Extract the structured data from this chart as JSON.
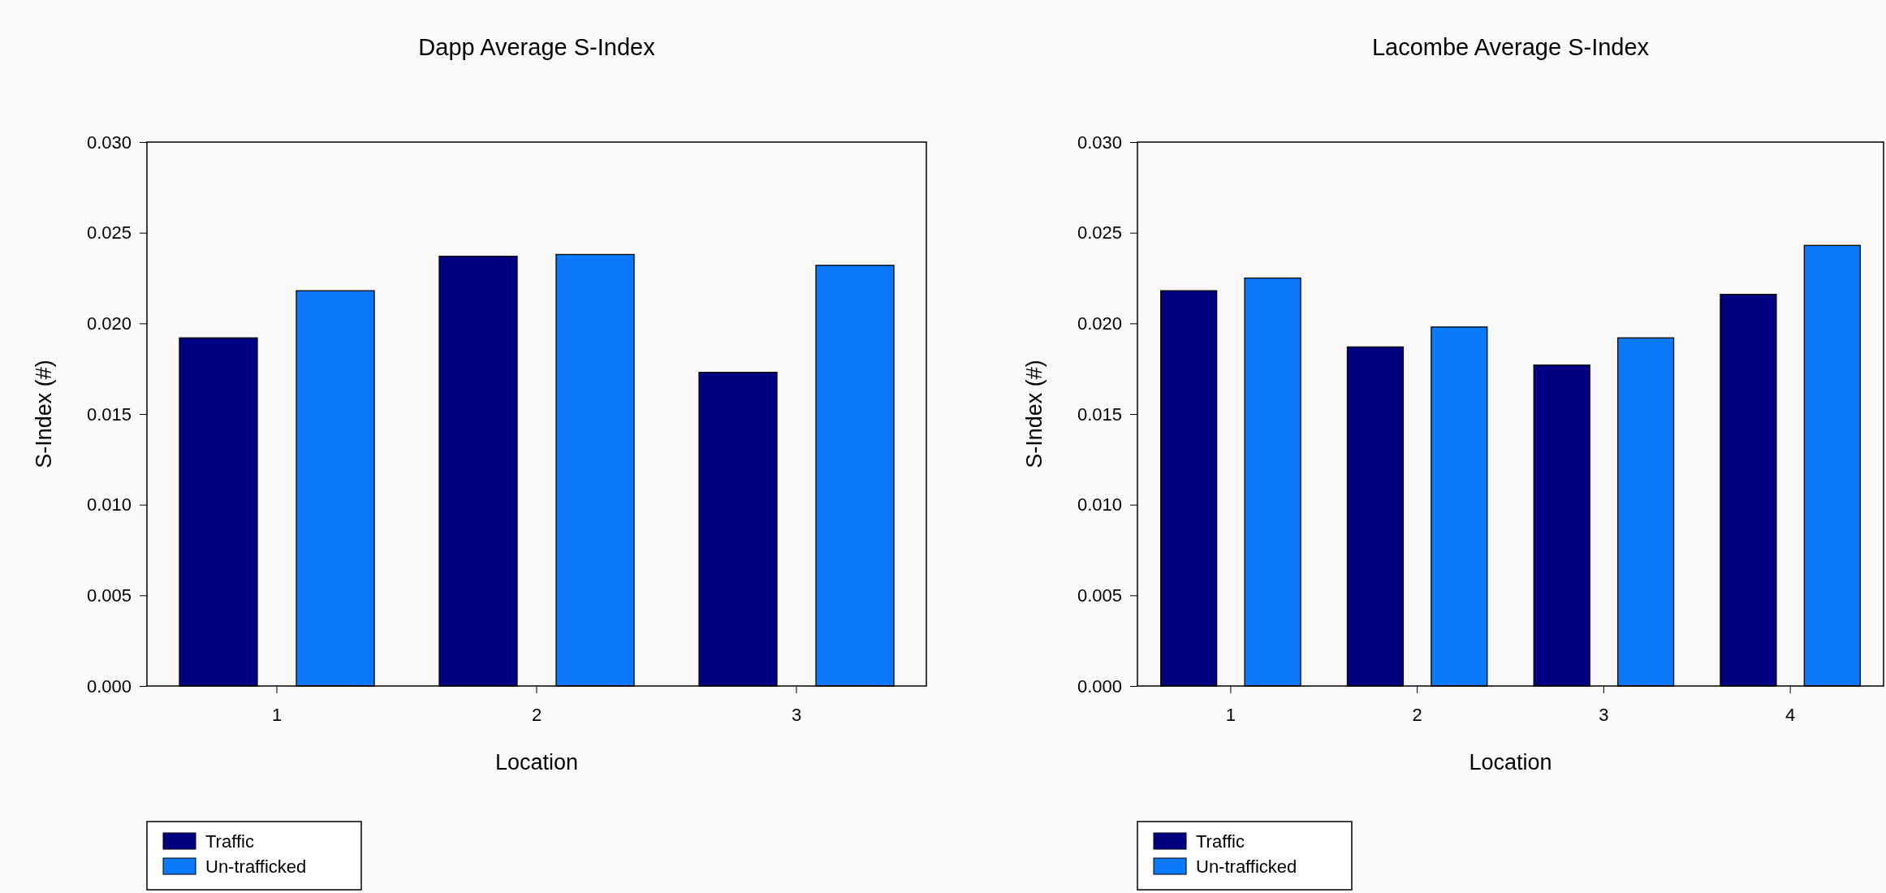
{
  "chart_data": [
    {
      "type": "bar",
      "title": "Dapp Average S-Index",
      "xlabel": "Location",
      "ylabel": "S-Index (#)",
      "categories": [
        "1",
        "2",
        "3"
      ],
      "series": [
        {
          "name": "Traffic",
          "color": "#000080",
          "values": [
            0.0192,
            0.0237,
            0.0173
          ]
        },
        {
          "name": "Un-trafficked",
          "color": "#0a7afa",
          "values": [
            0.0218,
            0.0238,
            0.0232
          ]
        }
      ],
      "ylim": [
        0,
        0.03
      ],
      "yticks": [
        {
          "value": 0,
          "label": "0.000"
        },
        {
          "value": 0.005,
          "label": "0.005"
        },
        {
          "value": 0.01,
          "label": "0.010"
        },
        {
          "value": 0.015,
          "label": "0.015"
        },
        {
          "value": 0.02,
          "label": "0.020"
        },
        {
          "value": 0.025,
          "label": "0.025"
        },
        {
          "value": 0.03,
          "label": "0.030"
        }
      ],
      "legend": "bottom left"
    },
    {
      "type": "bar",
      "title": "Lacombe Average S-Index",
      "xlabel": "Location",
      "ylabel": "S-Index (#)",
      "categories": [
        "1",
        "2",
        "3",
        "4"
      ],
      "series": [
        {
          "name": "Traffic",
          "color": "#000080",
          "values": [
            0.0218,
            0.0187,
            0.0177,
            0.0216
          ]
        },
        {
          "name": "Un-trafficked",
          "color": "#0a7afa",
          "values": [
            0.0225,
            0.0198,
            0.0192,
            0.0243
          ]
        }
      ],
      "ylim": [
        0,
        0.03
      ],
      "yticks": [
        {
          "value": 0,
          "label": "0.000"
        },
        {
          "value": 0.005,
          "label": "0.005"
        },
        {
          "value": 0.01,
          "label": "0.010"
        },
        {
          "value": 0.015,
          "label": "0.015"
        },
        {
          "value": 0.02,
          "label": "0.020"
        },
        {
          "value": 0.025,
          "label": "0.025"
        },
        {
          "value": 0.03,
          "label": "0.030"
        }
      ],
      "legend": "bottom left"
    }
  ]
}
